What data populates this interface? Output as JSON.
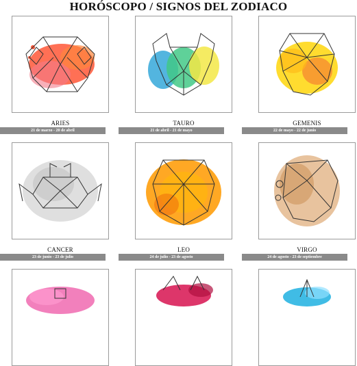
{
  "page": {
    "title": "HORÓSCOPO / SIGNOS DEL ZODIACO"
  },
  "signs": [
    {
      "name": "ARIES",
      "dates": "21 de marzo - 20 de abril",
      "icon": "aries-ram-icon",
      "palette": [
        "#ff2a1a",
        "#ff6a2a",
        "#f26d7d"
      ]
    },
    {
      "name": "TAURO",
      "dates": "21 de abril - 21 de mayo",
      "icon": "taurus-bull-icon",
      "palette": [
        "#1f9fd6",
        "#2fc37a",
        "#f2e533"
      ]
    },
    {
      "name": "GEMENIS",
      "dates": "22 de mayo - 22 de junio",
      "icon": "gemini-face-icon",
      "palette": [
        "#ffd400",
        "#ffb300",
        "#f35b1c"
      ]
    },
    {
      "name": "CANCER",
      "dates": "23 de junio - 23 de julio",
      "icon": "cancer-crab-icon",
      "palette": [
        "#d6d6d6",
        "#bdbdbd",
        "#9e9e9e"
      ]
    },
    {
      "name": "LEO",
      "dates": "24 de julio - 23 de agosto",
      "icon": "leo-lion-icon",
      "palette": [
        "#ff9a00",
        "#ffb300",
        "#f06a00"
      ]
    },
    {
      "name": "VIRGO",
      "dates": "24 de agosto - 23 de septiembre",
      "icon": "virgo-face-icon",
      "palette": [
        "#c98a4b",
        "#e0b080",
        "#a86a3a"
      ]
    },
    {
      "name": "",
      "dates": "",
      "icon": "libra-icon",
      "palette": [
        "#f06ab0",
        "#ff9ad0",
        "#e0407a"
      ]
    },
    {
      "name": "",
      "dates": "",
      "icon": "scorpio-icon",
      "palette": [
        "#d9205a",
        "#b01040",
        "#f06080"
      ]
    },
    {
      "name": "",
      "dates": "",
      "icon": "sagittarius-icon",
      "palette": [
        "#1fb0e0",
        "#40c8f0",
        "#90e0ff"
      ]
    }
  ]
}
